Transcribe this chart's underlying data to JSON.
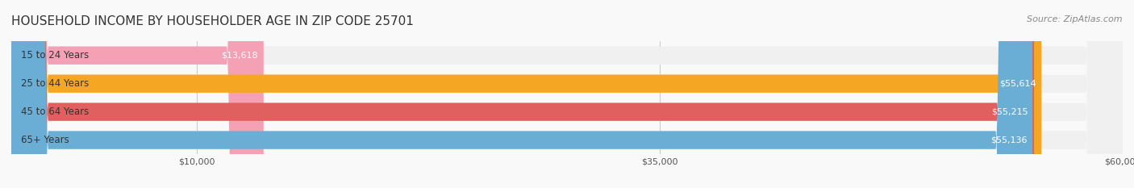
{
  "title": "HOUSEHOLD INCOME BY HOUSEHOLDER AGE IN ZIP CODE 25701",
  "source": "Source: ZipAtlas.com",
  "categories": [
    "15 to 24 Years",
    "25 to 44 Years",
    "45 to 64 Years",
    "65+ Years"
  ],
  "values": [
    13618,
    55614,
    55215,
    55136
  ],
  "bar_colors": [
    "#f4a0b5",
    "#f5a623",
    "#e06060",
    "#6aaed6"
  ],
  "bar_bg_color": "#f0f0f0",
  "value_labels": [
    "$13,618",
    "$55,614",
    "$55,215",
    "$55,136"
  ],
  "xlim": [
    0,
    60000
  ],
  "xticks": [
    10000,
    35000,
    60000
  ],
  "xtick_labels": [
    "$10,000",
    "$35,000",
    "$60,000"
  ],
  "background_color": "#f9f9f9",
  "title_fontsize": 11,
  "label_fontsize": 8.5,
  "value_fontsize": 8,
  "source_fontsize": 8
}
